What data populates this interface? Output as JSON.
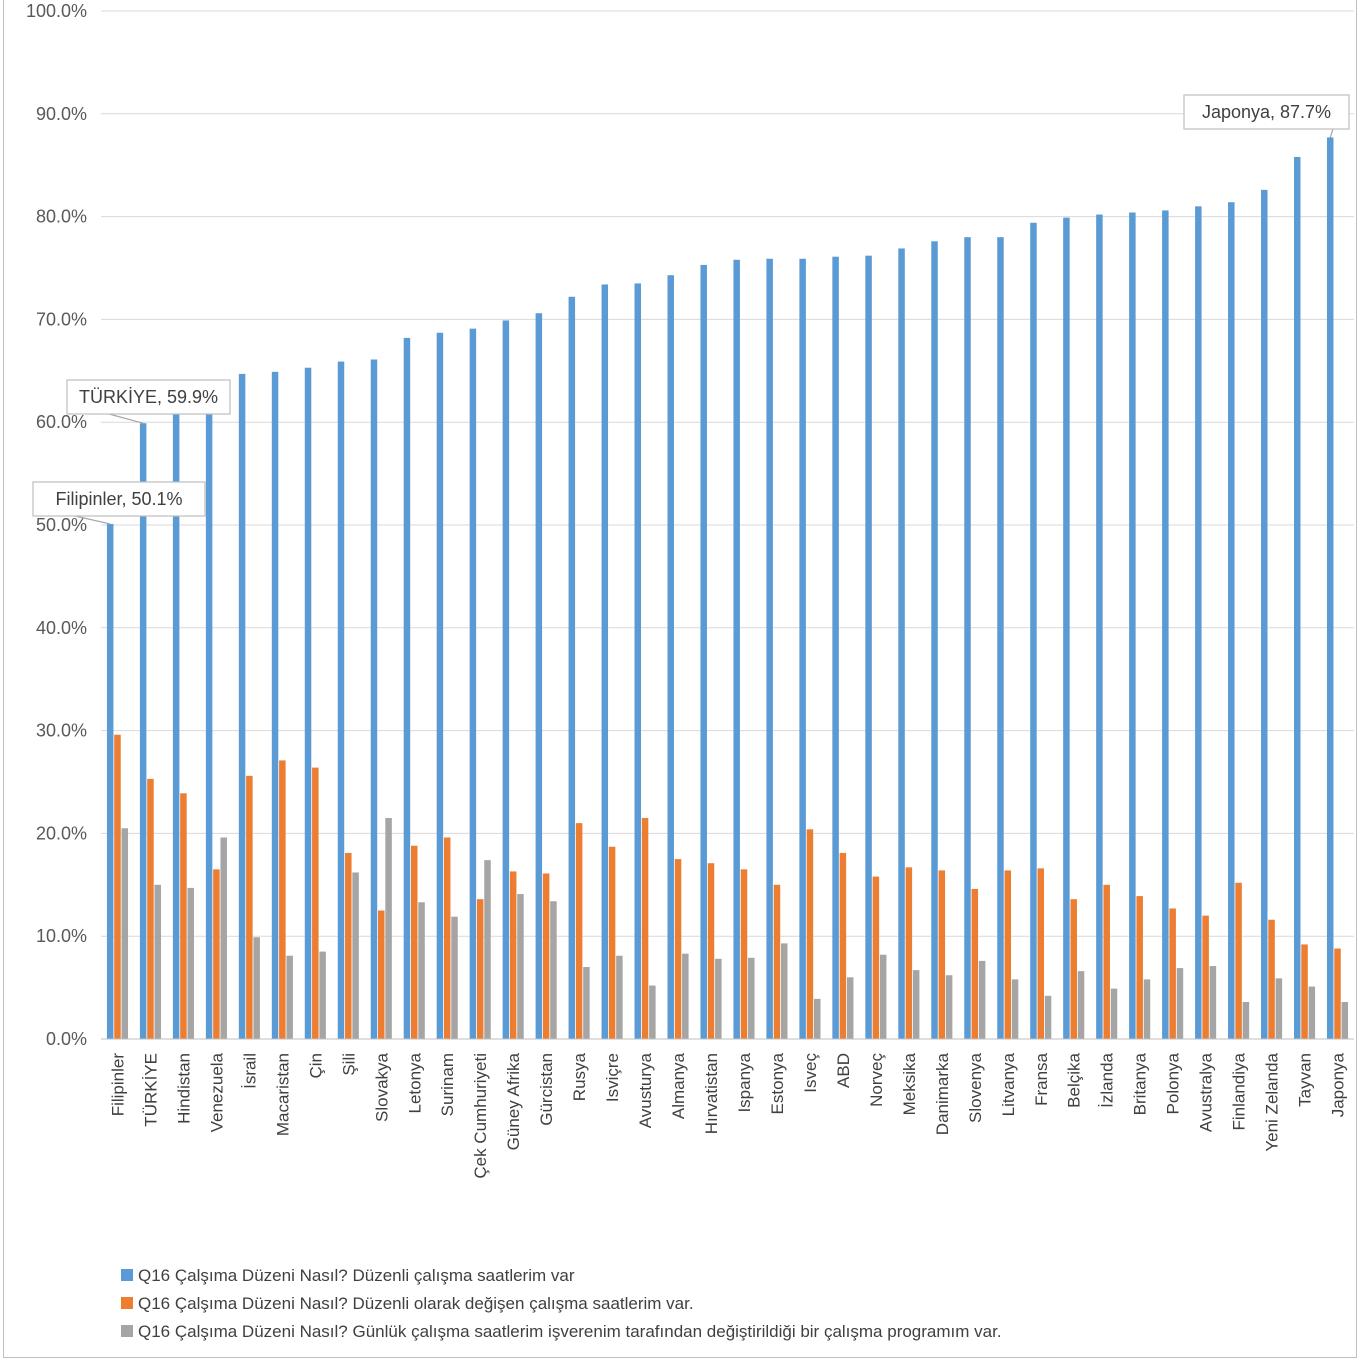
{
  "chart_data": {
    "type": "bar",
    "title": "",
    "xlabel": "",
    "ylabel": "",
    "ylim": [
      0,
      100
    ],
    "y_ticks": [
      "0.0%",
      "10.0%",
      "20.0%",
      "30.0%",
      "40.0%",
      "50.0%",
      "60.0%",
      "70.0%",
      "80.0%",
      "90.0%",
      "100.0%"
    ],
    "grid": "horizontal",
    "legend_position": "bottom",
    "categories": [
      "Filipinler",
      "TÜRKİYE",
      "Hindistan",
      "Venezuela",
      "İsrail",
      "Macaristan",
      "Çin",
      "Şili",
      "Slovakya",
      "Letonya",
      "Surinam",
      "Çek Cumhuriyeti",
      "Güney Afrika",
      "Gürcistan",
      "Rusya",
      "Isviçre",
      "Avusturya",
      "Almanya",
      "Hırvatistan",
      "Ispanya",
      "Estonya",
      "Isveç",
      "ABD",
      "Norveç",
      "Meksika",
      "Danimarka",
      "Slovenya",
      "Litvanya",
      "Fransa",
      "Belçika",
      "İzlanda",
      "Britanya",
      "Polonya",
      "Avustralya",
      "Finlandiya",
      "Yeni Zelanda",
      "Tayvan",
      "Japonya"
    ],
    "series": [
      {
        "name": "Q16 Çalşıma Düzeni Nasıl? Düzenli  çalışma  saatlerim var",
        "color": "#5b9bd5",
        "values": [
          50.1,
          59.9,
          60.8,
          61.0,
          64.7,
          64.9,
          65.3,
          65.9,
          66.1,
          68.2,
          68.7,
          69.1,
          69.9,
          70.6,
          72.2,
          73.4,
          73.5,
          74.3,
          75.3,
          75.8,
          75.9,
          75.9,
          76.1,
          76.2,
          76.9,
          77.6,
          78.0,
          78.0,
          79.4,
          79.9,
          80.2,
          80.4,
          80.6,
          81.0,
          81.4,
          82.6,
          85.8,
          87.7
        ]
      },
      {
        "name": "Q16 Çalşıma Düzeni Nasıl? Düzenli olarak değişen çalışma saatlerim var.",
        "color": "#ed7d31",
        "values": [
          29.6,
          25.3,
          23.9,
          16.5,
          25.6,
          27.1,
          26.4,
          18.1,
          12.5,
          18.8,
          19.6,
          13.6,
          16.3,
          16.1,
          21.0,
          18.7,
          21.5,
          17.5,
          17.1,
          16.5,
          15.0,
          20.4,
          18.1,
          15.8,
          16.7,
          16.4,
          14.6,
          16.4,
          16.6,
          13.6,
          15.0,
          13.9,
          12.7,
          12.0,
          15.2,
          11.6,
          9.2,
          8.8
        ]
      },
      {
        "name": "Q16 Çalşıma Düzeni Nasıl? Günlük çalışma saatlerim işverenim tarafından değiştirildiği bir çalışma programım var.",
        "color": "#a5a5a5",
        "values": [
          20.5,
          15.0,
          14.7,
          19.6,
          9.9,
          8.1,
          8.5,
          16.2,
          21.5,
          13.3,
          11.9,
          17.4,
          14.1,
          13.4,
          7.0,
          8.1,
          5.2,
          8.3,
          7.8,
          7.9,
          9.3,
          3.9,
          6.0,
          8.2,
          6.7,
          6.2,
          7.6,
          5.8,
          4.2,
          6.6,
          4.9,
          5.8,
          6.9,
          7.1,
          3.6,
          5.9,
          5.1,
          3.6
        ]
      }
    ],
    "annotations": [
      {
        "series": 0,
        "category": "Filipinler",
        "text": "Filipinler, 50.1%"
      },
      {
        "series": 0,
        "category": "TÜRKİYE",
        "text": "TÜRKİYE, 59.9%"
      },
      {
        "series": 0,
        "category": "Japonya",
        "text": "Japonya, 87.7%"
      }
    ]
  }
}
